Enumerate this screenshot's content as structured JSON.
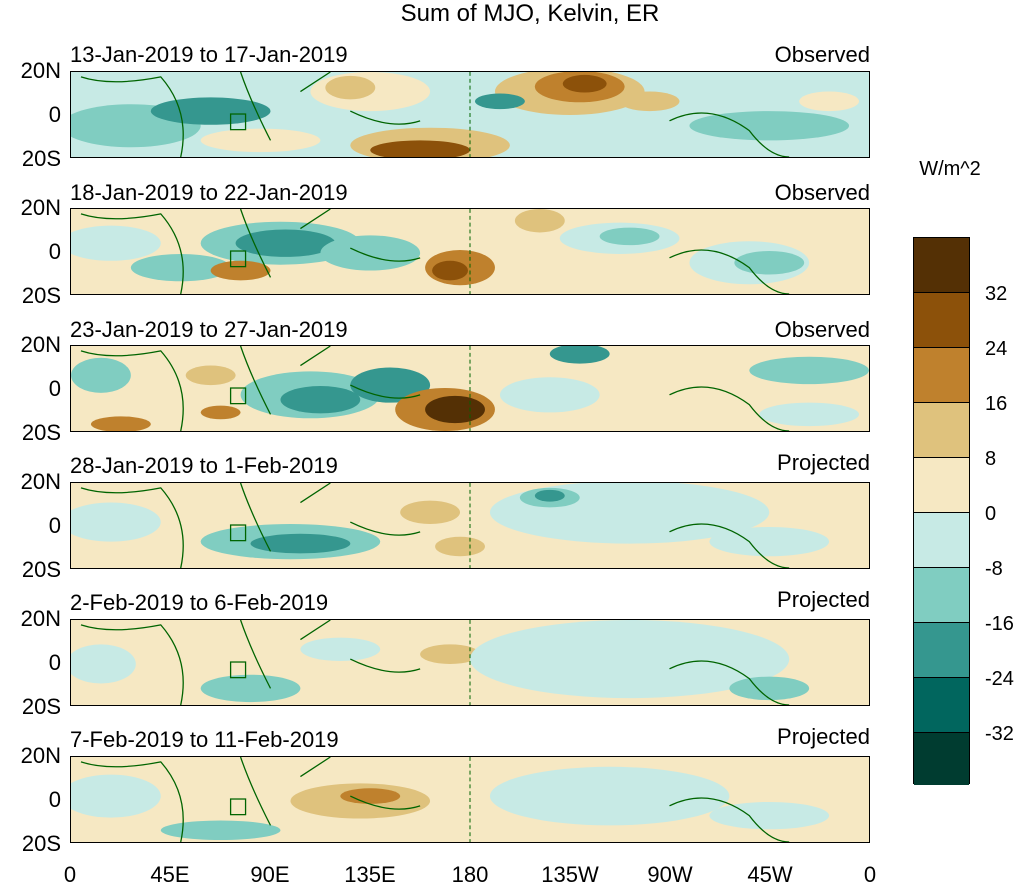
{
  "title": "Sum of MJO, Kelvin, ER",
  "panels": [
    {
      "dates": "13-Jan-2019 to 17-Jan-2019",
      "status": "Observed"
    },
    {
      "dates": "18-Jan-2019 to 22-Jan-2019",
      "status": "Observed"
    },
    {
      "dates": "23-Jan-2019 to 27-Jan-2019",
      "status": "Observed"
    },
    {
      "dates": "28-Jan-2019 to 1-Feb-2019",
      "status": "Projected"
    },
    {
      "dates": "2-Feb-2019 to 6-Feb-2019",
      "status": "Projected"
    },
    {
      "dates": "7-Feb-2019 to 11-Feb-2019",
      "status": "Projected"
    }
  ],
  "axes": {
    "lat_labels": [
      "20N",
      "0",
      "20S"
    ],
    "lon_labels": [
      "0",
      "45E",
      "90E",
      "135E",
      "180",
      "135W",
      "90W",
      "45W",
      "0"
    ]
  },
  "colorbar": {
    "unit": "W/m^2",
    "labels": [
      "32",
      "24",
      "16",
      "8",
      "0",
      "-8",
      "-16",
      "-24",
      "-32"
    ],
    "colors": [
      "#543005",
      "#8c510a",
      "#bf812d",
      "#dfc27d",
      "#f6e8c3",
      "#c7eae5",
      "#80cdc1",
      "#35978f",
      "#01665e",
      "#003c30"
    ]
  },
  "map_colors": {
    "coast": "#006400",
    "dateline": "#006400"
  }
}
